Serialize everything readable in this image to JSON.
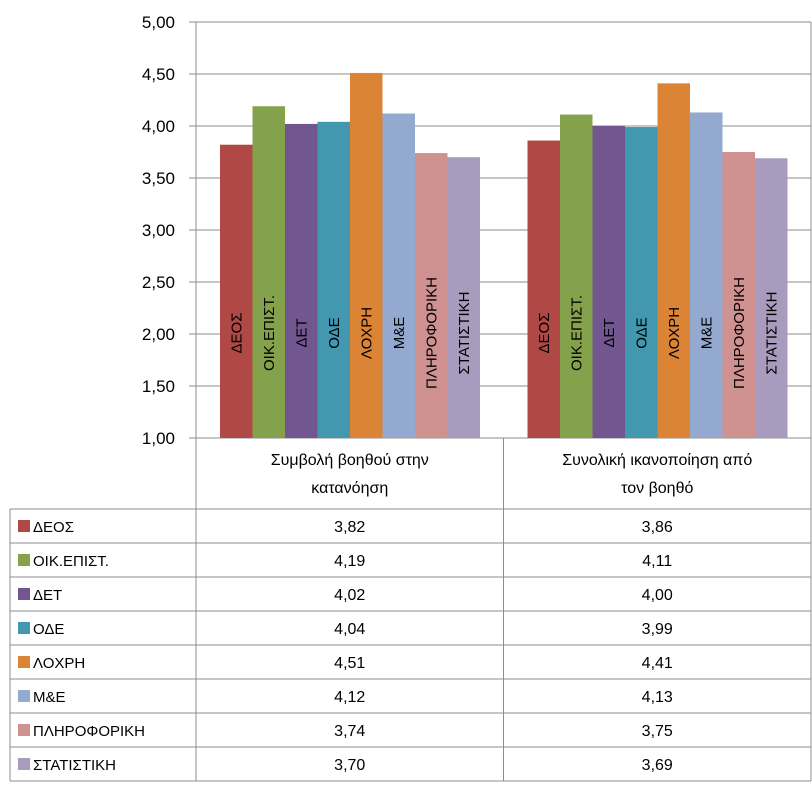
{
  "chart_data": {
    "type": "bar",
    "categories": [
      "Συμβολή βοηθού στην κατανόηση",
      "Συνολική ικανοποίηση από τον βοηθό"
    ],
    "category_lines": [
      [
        "Συμβολή βοηθού στην",
        "κατανόηση"
      ],
      [
        "Συνολική ικανοποίηση από",
        "τον βοηθό"
      ]
    ],
    "series": [
      {
        "name": "ΔΕΟΣ",
        "color": "#B04845",
        "values": [
          3.82,
          3.86
        ],
        "display": [
          "3,82",
          "3,86"
        ]
      },
      {
        "name": "ΟΙΚ.ΕΠΙΣΤ.",
        "color": "#84A24B",
        "values": [
          4.19,
          4.11
        ],
        "display": [
          "4,19",
          "4,11"
        ]
      },
      {
        "name": "ΔΕΤ",
        "color": "#71568F",
        "values": [
          4.02,
          4.0
        ],
        "display": [
          "4,02",
          "4,00"
        ]
      },
      {
        "name": "ΟΔΕ",
        "color": "#4198AF",
        "values": [
          4.04,
          3.99
        ],
        "display": [
          "4,04",
          "3,99"
        ]
      },
      {
        "name": "ΛΟΧΡΗ",
        "color": "#DC8436",
        "values": [
          4.51,
          4.41
        ],
        "display": [
          "4,51",
          "4,41"
        ]
      },
      {
        "name": "Μ&Ε",
        "color": "#93A9D0",
        "values": [
          4.12,
          4.13
        ],
        "display": [
          "4,12",
          "4,13"
        ]
      },
      {
        "name": "ΠΛΗΡΟΦΟΡΙΚΗ",
        "color": "#D09291",
        "values": [
          3.74,
          3.75
        ],
        "display": [
          "3,74",
          "3,75"
        ]
      },
      {
        "name": "ΣΤΑΤΙΣΤΙΚΗ",
        "color": "#A99BBD",
        "values": [
          3.7,
          3.69
        ],
        "display": [
          "3,70",
          "3,69"
        ]
      }
    ],
    "ylim": [
      1.0,
      5.0
    ],
    "yticks": [
      1.0,
      1.5,
      2.0,
      2.5,
      3.0,
      3.5,
      4.0,
      4.5,
      5.0
    ],
    "ytick_labels": [
      "1,00",
      "1,50",
      "2,00",
      "2,50",
      "3,00",
      "3,50",
      "4,00",
      "4,50",
      "5,00"
    ],
    "grid": true,
    "legend": "data-table",
    "colors": {
      "grid": "#8C8C8C",
      "axis": "#8C8C8C"
    }
  }
}
